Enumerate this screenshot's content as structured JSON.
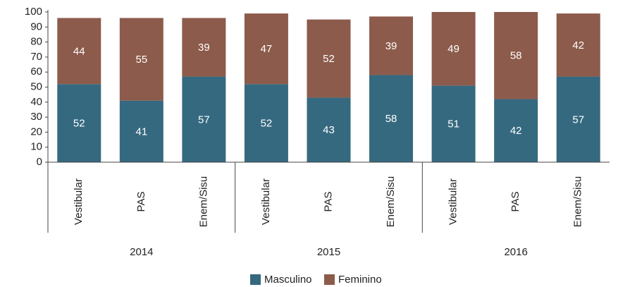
{
  "chart_data": {
    "type": "stacked_bar",
    "categories": [
      "Vestibular",
      "PAS",
      "Enem/Sisu",
      "Vestibular",
      "PAS",
      "Enem/Sisu",
      "Vestibular",
      "PAS",
      "Enem/Sisu"
    ],
    "groups": [
      "2014",
      "2015",
      "2016"
    ],
    "series": [
      {
        "name": "Masculino",
        "color": "#35697f",
        "values": [
          52,
          41,
          57,
          52,
          43,
          58,
          51,
          42,
          57
        ]
      },
      {
        "name": "Feminino",
        "color": "#8c5b4b",
        "values": [
          44,
          55,
          39,
          47,
          52,
          39,
          49,
          58,
          42
        ]
      }
    ],
    "ylim": [
      0,
      100
    ],
    "yticks": [
      0,
      10,
      20,
      30,
      40,
      50,
      60,
      70,
      80,
      90,
      100
    ],
    "grid": false,
    "legend": "bottom"
  }
}
